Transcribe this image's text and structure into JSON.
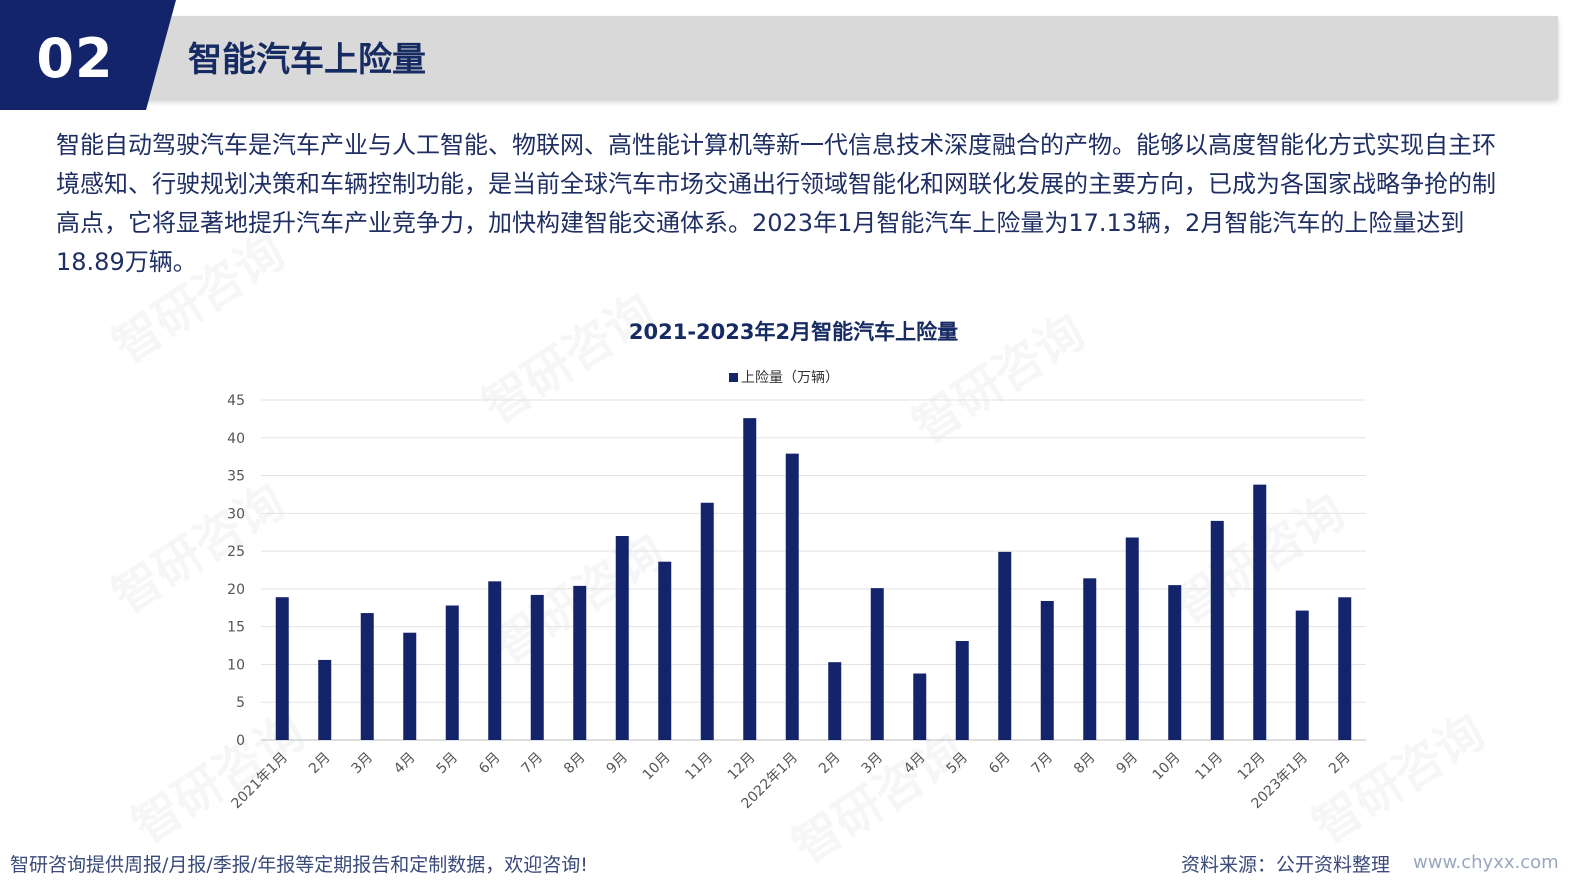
{
  "header": {
    "number": "02",
    "title": "智能汽车上险量"
  },
  "intro": "智能自动驾驶汽车是汽车产业与人工智能、物联网、高性能计算机等新一代信息技术深度融合的产物。能够以高度智能化方式实现自主环境感知、行驶规划决策和车辆控制功能，是当前全球汽车市场交通出行领域智能化和网联化发展的主要方向，已成为各国家战略争抢的制高点，它将显著地提升汽车产业竞争力，加快构建智能交通体系。2023年1月智能汽车上险量为17.13辆，2月智能汽车的上险量达到18.89万辆。",
  "watermark": "智研咨询",
  "chart_data": {
    "type": "bar",
    "title": "2021-2023年2月智能汽车上险量",
    "categories": [
      "2021年1月",
      "2月",
      "3月",
      "4月",
      "5月",
      "6月",
      "7月",
      "8月",
      "9月",
      "10月",
      "11月",
      "12月",
      "2022年1月",
      "2月",
      "3月",
      "4月",
      "5月",
      "6月",
      "7月",
      "8月",
      "9月",
      "10月",
      "11月",
      "12月",
      "2023年1月",
      "2月"
    ],
    "series": [
      {
        "name": "上险量（万辆）",
        "values": [
          18.9,
          10.6,
          16.8,
          14.2,
          17.8,
          21.0,
          19.2,
          20.4,
          27.0,
          23.6,
          31.4,
          42.6,
          37.9,
          10.3,
          20.1,
          8.8,
          13.1,
          24.9,
          18.4,
          21.4,
          26.8,
          20.5,
          29.0,
          33.8,
          17.13,
          18.89
        ]
      }
    ],
    "ylim": [
      0,
      45
    ],
    "yticks": [
      0,
      5,
      10,
      15,
      20,
      25,
      30,
      35,
      40,
      45
    ],
    "color": "#14246b",
    "grid": true,
    "legend": "top-center"
  },
  "footer": {
    "left": "智研咨询提供周报/月报/季报/年报等定期报告和定制数据，欢迎咨询!",
    "source": "资料来源：公开资料整理",
    "url": "www.chyxx.com"
  }
}
